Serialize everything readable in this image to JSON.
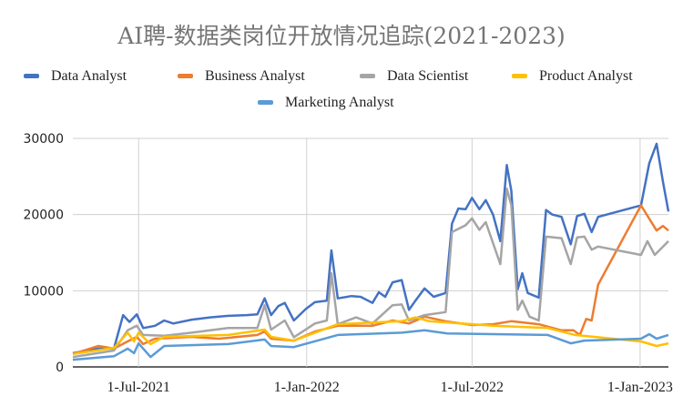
{
  "chart_data": {
    "type": "line",
    "title": "AI聘-数据类岗位开放情况追踪(2021-2023)",
    "xlabel": "",
    "ylabel": "",
    "xlim": [
      "2021-04-20",
      "2023-02-01"
    ],
    "ylim": [
      0,
      30000
    ],
    "yticks": [
      0,
      10000,
      20000,
      30000
    ],
    "ytick_labels": [
      "0",
      "10000",
      "20000",
      "30000"
    ],
    "xticks": [
      "2021-07-01",
      "2022-01-01",
      "2022-07-01",
      "2023-01-01"
    ],
    "xtick_labels": [
      "1-Jul-2021",
      "1-Jan-2022",
      "1-Jul-2022",
      "1-Jan-2023"
    ],
    "grid": true,
    "legend_position": "top",
    "series": [
      {
        "name": "Data Analyst",
        "color": "#4472c4",
        "points": [
          [
            "2021-04-20",
            1800
          ],
          [
            "2021-05-18",
            2400
          ],
          [
            "2021-06-04",
            2400
          ],
          [
            "2021-06-14",
            6800
          ],
          [
            "2021-06-21",
            5900
          ],
          [
            "2021-06-29",
            6900
          ],
          [
            "2021-07-06",
            5100
          ],
          [
            "2021-07-19",
            5400
          ],
          [
            "2021-07-29",
            6100
          ],
          [
            "2021-08-08",
            5700
          ],
          [
            "2021-08-28",
            6200
          ],
          [
            "2021-09-17",
            6500
          ],
          [
            "2021-10-07",
            6700
          ],
          [
            "2021-10-27",
            6800
          ],
          [
            "2021-11-08",
            6900
          ],
          [
            "2021-11-16",
            9000
          ],
          [
            "2021-11-23",
            6800
          ],
          [
            "2021-12-01",
            8000
          ],
          [
            "2021-12-08",
            8400
          ],
          [
            "2021-12-18",
            6100
          ],
          [
            "2021-12-31",
            7600
          ],
          [
            "2022-01-10",
            8500
          ],
          [
            "2022-01-23",
            8700
          ],
          [
            "2022-01-28",
            15300
          ],
          [
            "2022-02-04",
            9000
          ],
          [
            "2022-02-19",
            9300
          ],
          [
            "2022-03-01",
            9200
          ],
          [
            "2022-03-14",
            8400
          ],
          [
            "2022-03-21",
            9800
          ],
          [
            "2022-03-28",
            9200
          ],
          [
            "2022-04-05",
            11100
          ],
          [
            "2022-04-15",
            11400
          ],
          [
            "2022-04-23",
            7500
          ],
          [
            "2022-04-30",
            8700
          ],
          [
            "2022-05-10",
            10300
          ],
          [
            "2022-05-20",
            9200
          ],
          [
            "2022-06-02",
            9700
          ],
          [
            "2022-06-09",
            18800
          ],
          [
            "2022-06-16",
            20800
          ],
          [
            "2022-06-24",
            20700
          ],
          [
            "2022-07-01",
            22200
          ],
          [
            "2022-07-09",
            20700
          ],
          [
            "2022-07-16",
            21900
          ],
          [
            "2022-07-24",
            20000
          ],
          [
            "2022-08-01",
            16500
          ],
          [
            "2022-08-08",
            26500
          ],
          [
            "2022-08-13",
            23100
          ],
          [
            "2022-08-20",
            10200
          ],
          [
            "2022-08-25",
            12300
          ],
          [
            "2022-08-31",
            9700
          ],
          [
            "2022-09-12",
            9100
          ],
          [
            "2022-09-20",
            20600
          ],
          [
            "2022-09-27",
            20000
          ],
          [
            "2022-10-07",
            19700
          ],
          [
            "2022-10-17",
            16100
          ],
          [
            "2022-10-24",
            19800
          ],
          [
            "2022-11-01",
            20100
          ],
          [
            "2022-11-09",
            17700
          ],
          [
            "2022-11-16",
            19700
          ],
          [
            "2023-01-02",
            21200
          ],
          [
            "2023-01-11",
            26700
          ],
          [
            "2023-01-19",
            29300
          ],
          [
            "2023-01-26",
            24300
          ],
          [
            "2023-02-01",
            20400
          ]
        ]
      },
      {
        "name": "Business Analyst",
        "color": "#ed7d31",
        "points": [
          [
            "2021-04-20",
            1700
          ],
          [
            "2021-05-18",
            2750
          ],
          [
            "2021-06-04",
            2400
          ],
          [
            "2021-06-19",
            3350
          ],
          [
            "2021-06-29",
            3950
          ],
          [
            "2021-07-06",
            3000
          ],
          [
            "2021-07-19",
            3700
          ],
          [
            "2021-08-28",
            3950
          ],
          [
            "2021-09-27",
            3700
          ],
          [
            "2021-11-08",
            4200
          ],
          [
            "2021-11-16",
            4650
          ],
          [
            "2021-11-23",
            3700
          ],
          [
            "2021-12-18",
            3450
          ],
          [
            "2022-01-10",
            4650
          ],
          [
            "2022-02-04",
            5400
          ],
          [
            "2022-03-14",
            5400
          ],
          [
            "2022-04-05",
            6100
          ],
          [
            "2022-04-23",
            5700
          ],
          [
            "2022-05-10",
            6600
          ],
          [
            "2022-06-02",
            6000
          ],
          [
            "2022-07-01",
            5500
          ],
          [
            "2022-07-24",
            5600
          ],
          [
            "2022-08-13",
            6000
          ],
          [
            "2022-09-12",
            5600
          ],
          [
            "2022-10-07",
            4800
          ],
          [
            "2022-10-20",
            4800
          ],
          [
            "2022-10-27",
            4200
          ],
          [
            "2022-11-03",
            6300
          ],
          [
            "2022-11-09",
            6100
          ],
          [
            "2022-11-16",
            10800
          ],
          [
            "2023-01-02",
            21200
          ],
          [
            "2023-01-19",
            17900
          ],
          [
            "2023-01-26",
            18500
          ],
          [
            "2023-02-01",
            17900
          ]
        ]
      },
      {
        "name": "Data Scientist",
        "color": "#a5a5a5",
        "points": [
          [
            "2021-04-20",
            1300
          ],
          [
            "2021-06-04",
            2150
          ],
          [
            "2021-06-19",
            4800
          ],
          [
            "2021-06-29",
            5400
          ],
          [
            "2021-07-06",
            4200
          ],
          [
            "2021-07-29",
            4100
          ],
          [
            "2021-08-28",
            4500
          ],
          [
            "2021-10-07",
            5100
          ],
          [
            "2021-11-08",
            5100
          ],
          [
            "2021-11-16",
            8100
          ],
          [
            "2021-11-23",
            4900
          ],
          [
            "2021-12-08",
            6100
          ],
          [
            "2021-12-18",
            3900
          ],
          [
            "2022-01-10",
            5700
          ],
          [
            "2022-01-23",
            6100
          ],
          [
            "2022-01-28",
            12300
          ],
          [
            "2022-02-04",
            5600
          ],
          [
            "2022-02-24",
            6500
          ],
          [
            "2022-03-14",
            5700
          ],
          [
            "2022-04-05",
            8100
          ],
          [
            "2022-04-15",
            8200
          ],
          [
            "2022-04-23",
            6100
          ],
          [
            "2022-05-10",
            6800
          ],
          [
            "2022-06-02",
            7200
          ],
          [
            "2022-06-09",
            17700
          ],
          [
            "2022-06-24",
            18600
          ],
          [
            "2022-07-01",
            19500
          ],
          [
            "2022-07-09",
            18000
          ],
          [
            "2022-07-16",
            19000
          ],
          [
            "2022-08-01",
            13500
          ],
          [
            "2022-08-08",
            23400
          ],
          [
            "2022-08-13",
            21200
          ],
          [
            "2022-08-20",
            7500
          ],
          [
            "2022-08-25",
            8700
          ],
          [
            "2022-09-02",
            6600
          ],
          [
            "2022-09-12",
            6100
          ],
          [
            "2022-09-20",
            17100
          ],
          [
            "2022-10-07",
            16900
          ],
          [
            "2022-10-17",
            13500
          ],
          [
            "2022-10-24",
            17000
          ],
          [
            "2022-11-01",
            17100
          ],
          [
            "2022-11-09",
            15400
          ],
          [
            "2022-11-16",
            15800
          ],
          [
            "2023-01-02",
            14700
          ],
          [
            "2023-01-09",
            16500
          ],
          [
            "2023-01-17",
            14700
          ],
          [
            "2023-02-01",
            16500
          ]
        ]
      },
      {
        "name": "Product Analyst",
        "color": "#ffc000",
        "points": [
          [
            "2021-04-20",
            1700
          ],
          [
            "2021-06-04",
            2500
          ],
          [
            "2021-06-19",
            4500
          ],
          [
            "2021-06-26",
            3350
          ],
          [
            "2021-07-01",
            4500
          ],
          [
            "2021-07-14",
            3000
          ],
          [
            "2021-07-29",
            3950
          ],
          [
            "2021-10-07",
            4200
          ],
          [
            "2021-11-16",
            4900
          ],
          [
            "2021-11-23",
            3950
          ],
          [
            "2021-12-18",
            3450
          ],
          [
            "2022-02-04",
            5600
          ],
          [
            "2022-04-15",
            6000
          ],
          [
            "2022-04-30",
            6500
          ],
          [
            "2022-05-15",
            6000
          ],
          [
            "2022-07-24",
            5400
          ],
          [
            "2022-09-22",
            5100
          ],
          [
            "2022-10-22",
            4200
          ],
          [
            "2023-01-02",
            3350
          ],
          [
            "2023-01-19",
            2750
          ],
          [
            "2023-02-01",
            3100
          ]
        ]
      },
      {
        "name": "Marketing Analyst",
        "color": "#5b9bd5",
        "points": [
          [
            "2021-04-20",
            950
          ],
          [
            "2021-06-04",
            1400
          ],
          [
            "2021-06-19",
            2400
          ],
          [
            "2021-06-26",
            1800
          ],
          [
            "2021-07-01",
            3100
          ],
          [
            "2021-07-14",
            1300
          ],
          [
            "2021-07-29",
            2750
          ],
          [
            "2021-10-07",
            3000
          ],
          [
            "2021-11-16",
            3600
          ],
          [
            "2021-11-23",
            2750
          ],
          [
            "2021-12-18",
            2600
          ],
          [
            "2022-02-04",
            4200
          ],
          [
            "2022-04-15",
            4500
          ],
          [
            "2022-05-10",
            4800
          ],
          [
            "2022-06-04",
            4400
          ],
          [
            "2022-07-24",
            4300
          ],
          [
            "2022-09-22",
            4200
          ],
          [
            "2022-10-17",
            3100
          ],
          [
            "2022-11-01",
            3450
          ],
          [
            "2023-01-02",
            3700
          ],
          [
            "2023-01-11",
            4300
          ],
          [
            "2023-01-19",
            3700
          ],
          [
            "2023-02-01",
            4200
          ]
        ]
      }
    ]
  }
}
